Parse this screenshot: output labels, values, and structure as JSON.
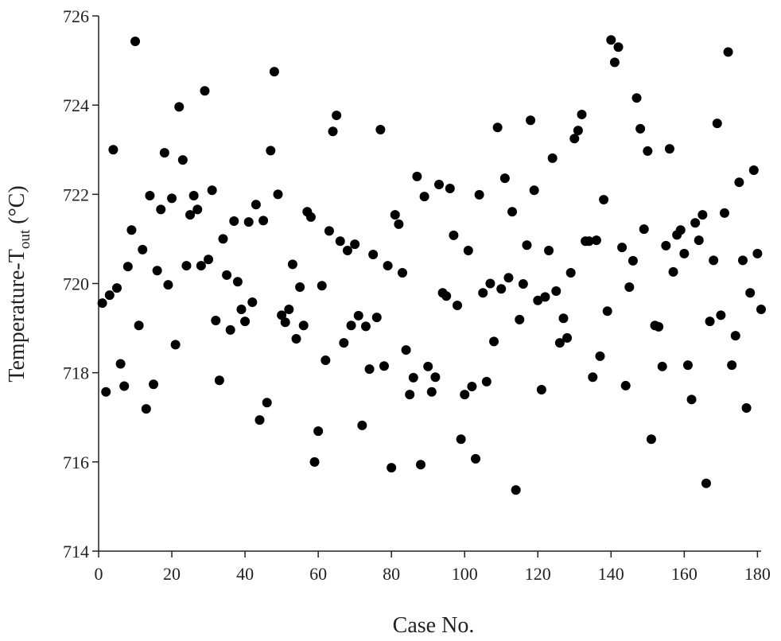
{
  "chart_data": {
    "type": "scatter",
    "xlabel": "Case No.",
    "ylabel_parts": [
      "Temperature-T",
      "out",
      " (°C)"
    ],
    "color": "#000000",
    "xlim": [
      0,
      181
    ],
    "xticks": [
      0,
      20,
      40,
      60,
      80,
      100,
      120,
      140,
      160,
      180
    ],
    "ylim": [
      714,
      726
    ],
    "yticks": [
      714,
      716,
      718,
      720,
      722,
      724,
      726
    ],
    "x": [
      1,
      2,
      3,
      4,
      5,
      6,
      7,
      8,
      9,
      10,
      11,
      12,
      13,
      14,
      15,
      16,
      17,
      18,
      19,
      20,
      21,
      22,
      23,
      24,
      25,
      26,
      27,
      28,
      29,
      30,
      31,
      32,
      33,
      34,
      35,
      36,
      37,
      38,
      39,
      40,
      41,
      42,
      43,
      44,
      45,
      46,
      47,
      48,
      49,
      50,
      51,
      52,
      53,
      54,
      55,
      56,
      57,
      58,
      59,
      60,
      61,
      62,
      63,
      64,
      65,
      66,
      67,
      68,
      69,
      70,
      71,
      72,
      73,
      74,
      75,
      76,
      77,
      78,
      79,
      80,
      81,
      82,
      83,
      84,
      85,
      86,
      87,
      88,
      89,
      90,
      91,
      92,
      93,
      94,
      95,
      96,
      97,
      98,
      99,
      100,
      101,
      102,
      103,
      104,
      105,
      106,
      107,
      108,
      109,
      110,
      111,
      112,
      113,
      114,
      115,
      116,
      117,
      118,
      119,
      120,
      121,
      122,
      123,
      124,
      125,
      126,
      127,
      128,
      129,
      130,
      131,
      132,
      133,
      134,
      135,
      136,
      137,
      138,
      139,
      140,
      141,
      142,
      143,
      144,
      145,
      146,
      147,
      148,
      149,
      150,
      151,
      152,
      153,
      154,
      155,
      156,
      157,
      158,
      159,
      160,
      161,
      162,
      163,
      164,
      165,
      166,
      167,
      168,
      169,
      170,
      171,
      172,
      173,
      174,
      175,
      176,
      177,
      178,
      179,
      180,
      181
    ],
    "values": [
      719.56,
      717.57,
      719.74,
      723.0,
      719.9,
      718.2,
      717.7,
      720.38,
      721.2,
      725.43,
      719.06,
      720.76,
      717.19,
      721.97,
      717.74,
      720.29,
      721.66,
      722.93,
      719.97,
      721.91,
      718.63,
      723.96,
      722.77,
      720.4,
      721.54,
      721.97,
      721.66,
      720.4,
      724.32,
      720.54,
      722.09,
      719.17,
      717.83,
      721.0,
      720.19,
      718.96,
      721.4,
      720.04,
      719.42,
      719.15,
      721.38,
      719.58,
      721.77,
      716.94,
      721.41,
      717.33,
      722.98,
      724.75,
      722.0,
      719.29,
      719.13,
      719.42,
      720.43,
      718.76,
      719.92,
      719.06,
      721.61,
      721.49,
      716.0,
      716.69,
      719.95,
      718.28,
      721.18,
      723.41,
      723.77,
      720.95,
      718.67,
      720.74,
      719.06,
      720.88,
      719.28,
      716.82,
      719.04,
      718.08,
      720.65,
      719.24,
      723.45,
      718.15,
      720.4,
      715.87,
      721.54,
      721.33,
      720.24,
      718.51,
      717.51,
      717.89,
      722.4,
      715.94,
      721.95,
      718.14,
      717.57,
      717.9,
      722.22,
      719.79,
      719.72,
      722.13,
      721.08,
      719.51,
      716.51,
      717.51,
      720.74,
      717.69,
      716.07,
      721.99,
      719.79,
      717.8,
      720.0,
      718.7,
      723.5,
      719.88,
      722.36,
      720.13,
      721.61,
      715.37,
      719.19,
      719.99,
      720.86,
      723.66,
      722.09,
      719.62,
      717.62,
      719.7,
      720.74,
      722.81,
      719.83,
      718.67,
      719.22,
      718.78,
      720.24,
      723.25,
      723.43,
      723.79,
      720.95,
      720.95,
      717.9,
      720.97,
      718.37,
      721.88,
      719.38,
      725.46,
      724.96,
      725.3,
      720.81,
      717.71,
      719.92,
      720.51,
      724.16,
      723.47,
      721.22,
      722.97,
      716.51,
      719.06,
      719.03,
      718.14,
      720.85,
      723.02,
      720.26,
      721.09,
      721.2,
      720.67,
      718.17,
      717.4,
      721.36,
      720.97,
      721.54,
      715.52,
      719.15,
      720.52,
      723.59,
      719.29,
      721.58,
      725.19,
      718.17,
      718.83,
      722.27,
      720.52,
      717.21,
      719.79,
      722.54,
      720.67,
      719.42
    ]
  }
}
